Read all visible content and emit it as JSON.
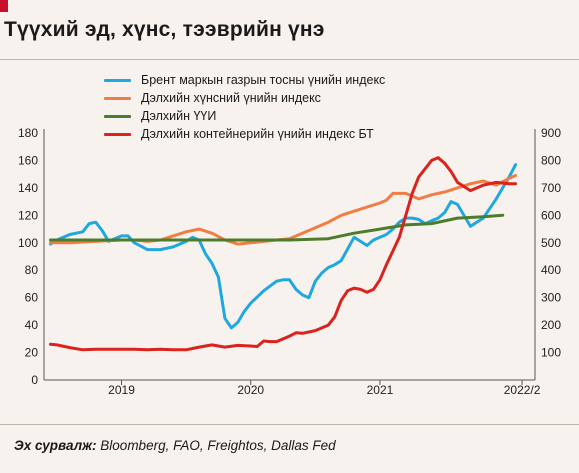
{
  "header": {
    "title": "Түүхий эд, хүнс, тээврийн үнэ"
  },
  "footer": {
    "source_label": "Эх сурвалж:",
    "source_text": "Bloomberg, FAO, Freightos, Dallas Fed"
  },
  "colors": {
    "brent": "#1fa8e0",
    "food": "#ef7e45",
    "pmi": "#4d7d2c",
    "container": "#d9231c",
    "accent": "#c8102e"
  },
  "chart_data": {
    "type": "line",
    "title": "Түүхий эд, хүнс, тээврийн үнэ",
    "x_axis": {
      "unit": "year",
      "range": [
        2018.4,
        2022.2
      ],
      "tick_labels": [
        {
          "label": "2019",
          "x": 2019.0
        },
        {
          "label": "2020",
          "x": 2020.0
        },
        {
          "label": "2021",
          "x": 2021.0
        },
        {
          "label": "2022/2",
          "x": 2022.1
        }
      ]
    },
    "y_left": {
      "range": [
        0,
        180
      ],
      "ticks": [
        0,
        20,
        40,
        60,
        80,
        100,
        120,
        140,
        160,
        180
      ]
    },
    "y_right": {
      "range": [
        0,
        900
      ],
      "ticks": [
        100,
        200,
        300,
        400,
        500,
        600,
        700,
        800,
        900
      ]
    },
    "grid": false,
    "legend_position": "top-left",
    "series": [
      {
        "name": "Брент маркын газрын тосны үнийн индекс",
        "color_key": "brent",
        "axis": "left",
        "x": [
          2018.45,
          2018.5,
          2018.6,
          2018.7,
          2018.75,
          2018.8,
          2018.85,
          2018.9,
          2019.0,
          2019.05,
          2019.1,
          2019.2,
          2019.3,
          2019.4,
          2019.5,
          2019.55,
          2019.6,
          2019.65,
          2019.7,
          2019.75,
          2019.8,
          2019.85,
          2019.9,
          2019.95,
          2020.0,
          2020.1,
          2020.2,
          2020.25,
          2020.3,
          2020.35,
          2020.4,
          2020.45,
          2020.5,
          2020.55,
          2020.6,
          2020.65,
          2020.7,
          2020.8,
          2020.85,
          2020.9,
          2020.95,
          2021.0,
          2021.05,
          2021.1,
          2021.15,
          2021.2,
          2021.25,
          2021.3,
          2021.35,
          2021.4,
          2021.45,
          2021.5,
          2021.55,
          2021.6,
          2021.7,
          2021.8,
          2021.9,
          2022.0,
          2022.05
        ],
        "y": [
          99,
          102,
          106,
          108,
          114,
          115,
          109,
          101,
          105,
          105,
          100,
          95,
          95,
          97,
          101,
          104,
          102,
          92,
          85,
          75,
          45,
          38,
          42,
          50,
          56,
          65,
          72,
          73,
          73,
          66,
          62,
          60,
          72,
          78,
          82,
          84,
          87,
          104,
          101,
          98,
          102,
          104,
          106,
          110,
          115,
          118,
          118,
          117,
          114,
          116,
          118,
          122,
          130,
          128,
          112,
          118,
          132,
          148,
          157
        ]
      },
      {
        "name": "Дэлхийн хүнсний үнийн индекс",
        "color_key": "food",
        "axis": "left",
        "x": [
          2018.45,
          2018.6,
          2018.8,
          2019.0,
          2019.1,
          2019.2,
          2019.3,
          2019.4,
          2019.5,
          2019.6,
          2019.7,
          2019.8,
          2019.9,
          2020.0,
          2020.1,
          2020.2,
          2020.3,
          2020.4,
          2020.5,
          2020.6,
          2020.7,
          2020.8,
          2020.9,
          2021.0,
          2021.05,
          2021.1,
          2021.2,
          2021.3,
          2021.4,
          2021.5,
          2021.6,
          2021.7,
          2021.8,
          2021.9,
          2022.0,
          2022.05
        ],
        "y": [
          100,
          100,
          101,
          102,
          102,
          101,
          102,
          105,
          108,
          110,
          107,
          102,
          99,
          100,
          101,
          102,
          103,
          107,
          111,
          115,
          120,
          123,
          126,
          129,
          131,
          136,
          136,
          132,
          135,
          137,
          140,
          143,
          145,
          142,
          147,
          149
        ]
      },
      {
        "name": "Дэлхийн ҮҮИ",
        "color_key": "pmi",
        "axis": "left",
        "x": [
          2018.45,
          2019.0,
          2019.5,
          2020.0,
          2020.3,
          2020.6,
          2020.8,
          2021.0,
          2021.2,
          2021.4,
          2021.6,
          2021.8,
          2021.95
        ],
        "y": [
          102,
          102,
          102,
          102,
          102,
          103,
          107,
          110,
          113,
          114,
          118,
          119,
          120
        ]
      },
      {
        "name": "Дэлхийн контейнерийн үнийн индекс БТ",
        "color_key": "container",
        "axis": "right",
        "x": [
          2018.45,
          2018.5,
          2018.6,
          2018.7,
          2018.8,
          2018.9,
          2019.0,
          2019.05,
          2019.1,
          2019.2,
          2019.3,
          2019.4,
          2019.5,
          2019.6,
          2019.7,
          2019.8,
          2019.9,
          2020.0,
          2020.05,
          2020.1,
          2020.15,
          2020.2,
          2020.3,
          2020.35,
          2020.4,
          2020.5,
          2020.55,
          2020.6,
          2020.65,
          2020.7,
          2020.75,
          2020.8,
          2020.85,
          2020.9,
          2020.95,
          2021.0,
          2021.05,
          2021.1,
          2021.15,
          2021.2,
          2021.25,
          2021.3,
          2021.35,
          2021.4,
          2021.45,
          2021.5,
          2021.55,
          2021.6,
          2021.7,
          2021.8,
          2021.9,
          2022.0,
          2022.05
        ],
        "y": [
          130,
          128,
          118,
          110,
          112,
          112,
          112,
          112,
          112,
          110,
          112,
          110,
          110,
          120,
          128,
          120,
          126,
          124,
          122,
          142,
          140,
          140,
          160,
          172,
          170,
          180,
          190,
          200,
          230,
          290,
          325,
          335,
          330,
          320,
          330,
          365,
          420,
          470,
          520,
          600,
          680,
          740,
          770,
          800,
          810,
          790,
          760,
          720,
          690,
          710,
          720,
          715,
          715
        ]
      }
    ]
  }
}
